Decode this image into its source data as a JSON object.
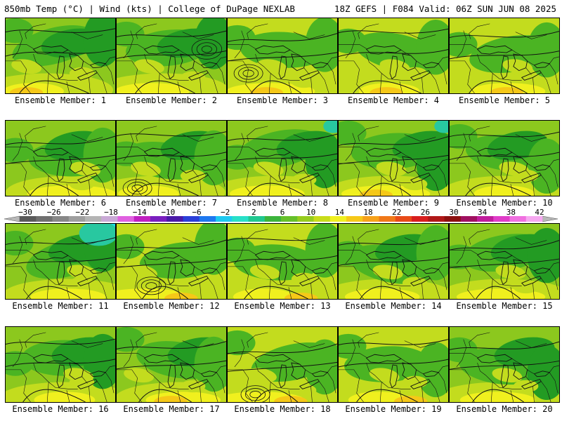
{
  "header": {
    "left": "850mb Temp (°C) | Wind (kts) | College of DuPage NEXLAB",
    "right": "18Z GEFS | F084 Valid: 06Z SUN JUN 08 2025"
  },
  "legend": {
    "ticks": [
      "−30",
      "−26",
      "−22",
      "−18",
      "−14",
      "−10",
      "−6",
      "−2",
      "2",
      "6",
      "10",
      "14",
      "18",
      "22",
      "26",
      "30",
      "34",
      "38",
      "42"
    ],
    "colors": [
      "#5a5a5a",
      "#707070",
      "#878787",
      "#9e9e9e",
      "#b4b4b4",
      "#c9a9d6",
      "#e060e0",
      "#c020c0",
      "#7a1fbf",
      "#4a1aa8",
      "#2b3fd9",
      "#1e78f0",
      "#1ec8f0",
      "#28e0c8",
      "#20c890",
      "#3cb43c",
      "#66c02a",
      "#96cc1e",
      "#c8dc1a",
      "#f0f020",
      "#f6c818",
      "#f7a21a",
      "#f07818",
      "#e84a18",
      "#d81e1e",
      "#b01818",
      "#8c1010",
      "#a01060",
      "#c01c9c",
      "#e03cc8",
      "#f070e0",
      "#f6a8f0"
    ],
    "arrow_color": "#b8b8b8"
  },
  "members": [
    {
      "label": "Ensemble Member: 1",
      "tone": "cool"
    },
    {
      "label": "Ensemble Member: 2",
      "tone": "cool"
    },
    {
      "label": "Ensemble Member: 3",
      "tone": "warm"
    },
    {
      "label": "Ensemble Member: 4",
      "tone": "warm"
    },
    {
      "label": "Ensemble Member: 5",
      "tone": "warm"
    },
    {
      "label": "Ensemble Member: 6",
      "tone": "mid"
    },
    {
      "label": "Ensemble Member: 7",
      "tone": "mid"
    },
    {
      "label": "Ensemble Member: 8",
      "tone": "cool"
    },
    {
      "label": "Ensemble Member: 9",
      "tone": "cool"
    },
    {
      "label": "Ensemble Member: 10",
      "tone": "mid"
    },
    {
      "label": "Ensemble Member: 11",
      "tone": "cool"
    },
    {
      "label": "Ensemble Member: 12",
      "tone": "warm"
    },
    {
      "label": "Ensemble Member: 13",
      "tone": "warm"
    },
    {
      "label": "Ensemble Member: 14",
      "tone": "mid"
    },
    {
      "label": "Ensemble Member: 15",
      "tone": "cool"
    },
    {
      "label": "Ensemble Member: 16",
      "tone": "cool"
    },
    {
      "label": "Ensemble Member: 17",
      "tone": "mid"
    },
    {
      "label": "Ensemble Member: 18",
      "tone": "warm"
    },
    {
      "label": "Ensemble Member: 19",
      "tone": "warm"
    },
    {
      "label": "Ensemble Member: 20",
      "tone": "cool"
    }
  ],
  "palette": {
    "dark_green": "#239b23",
    "green": "#4bb423",
    "light_green": "#8cc81e",
    "yellow_green": "#c3dc1e",
    "yellow": "#f0f01e",
    "orange": "#f5c818",
    "teal": "#28c8a0",
    "cyan": "#1ee0e6"
  }
}
